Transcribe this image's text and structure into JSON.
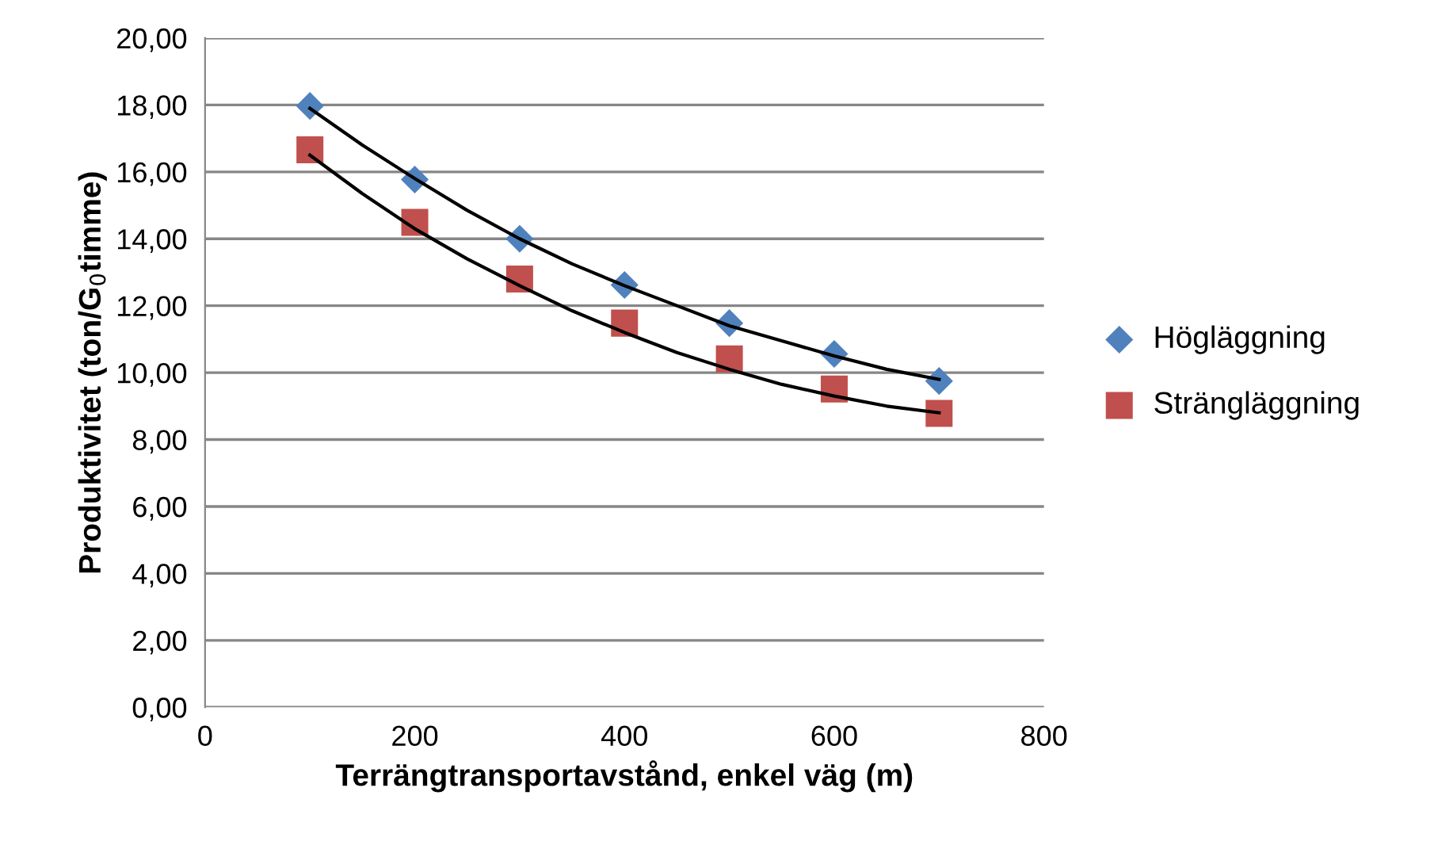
{
  "chart_data": {
    "type": "scatter",
    "xlabel": "Terrängtransportavstånd, enkel väg (m)",
    "ylabel": "Produktivitet (ton/G$_{0}$timme)",
    "x": [
      100,
      200,
      300,
      400,
      500,
      600,
      700
    ],
    "series": [
      {
        "name": "Högläggning",
        "color": "#4f81bd",
        "marker": "diamond",
        "values": [
          17.97,
          15.77,
          14.0,
          12.62,
          11.48,
          10.56,
          9.75
        ]
      },
      {
        "name": "Strängläggning",
        "color": "#c0504d",
        "marker": "square",
        "values": [
          16.66,
          14.49,
          12.8,
          11.48,
          10.41,
          9.51,
          8.78
        ]
      },
      {
        "type": "line",
        "color": "#000000",
        "marker": "none",
        "x": [
          100,
          150,
          200,
          250,
          300,
          350,
          400,
          450,
          500,
          550,
          600,
          650,
          700
        ],
        "values": [
          17.9,
          16.8,
          15.8,
          14.85,
          14.0,
          13.25,
          12.6,
          12.0,
          11.4,
          10.95,
          10.5,
          10.1,
          9.8
        ]
      },
      {
        "type": "line",
        "color": "#000000",
        "marker": "none",
        "x": [
          100,
          150,
          200,
          250,
          300,
          350,
          400,
          450,
          500,
          550,
          600,
          650,
          700
        ],
        "values": [
          16.5,
          15.35,
          14.3,
          13.4,
          12.6,
          11.85,
          11.2,
          10.6,
          10.1,
          9.65,
          9.3,
          9.0,
          8.8
        ]
      }
    ],
    "xlim": [
      0,
      800
    ],
    "xticks": [
      0,
      200,
      400,
      600,
      800
    ],
    "ylim": [
      0,
      20
    ],
    "yticks": [
      {
        "value": 0,
        "label": "0,00"
      },
      {
        "value": 2,
        "label": "2,00"
      },
      {
        "value": 4,
        "label": "4,00"
      },
      {
        "value": 6,
        "label": "6,00"
      },
      {
        "value": 8,
        "label": "8,00"
      },
      {
        "value": 10,
        "label": "10,00"
      },
      {
        "value": 12,
        "label": "12,00"
      },
      {
        "value": 14,
        "label": "14,00"
      },
      {
        "value": 16,
        "label": "16,00"
      },
      {
        "value": 18,
        "label": "18,00"
      },
      {
        "value": 20,
        "label": "20,00"
      }
    ],
    "grid": "y",
    "legend": "right"
  }
}
